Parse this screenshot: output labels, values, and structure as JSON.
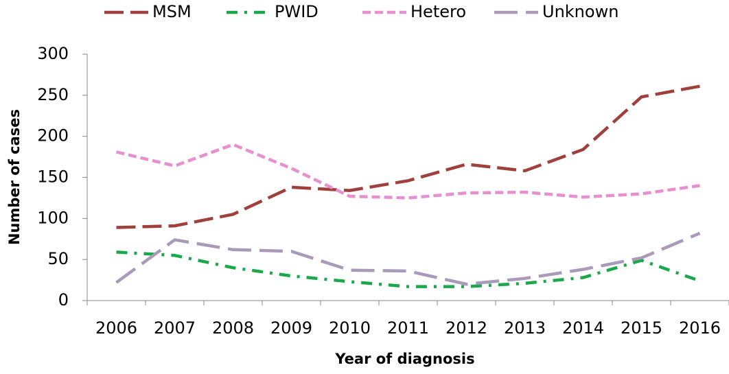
{
  "chart_data": {
    "type": "line",
    "x_label": "Year of diagnosis",
    "y_label": "Number of cases",
    "categories": [
      "2006",
      "2007",
      "2008",
      "2009",
      "2010",
      "2011",
      "2012",
      "2013",
      "2014",
      "2015",
      "2016"
    ],
    "series": [
      {
        "name": "MSM",
        "color": "#a0403c",
        "values": [
          89,
          91,
          105,
          138,
          134,
          146,
          166,
          158,
          184,
          248,
          261
        ]
      },
      {
        "name": "PWID",
        "color": "#1aa84a",
        "values": [
          59,
          55,
          40,
          30,
          23,
          17,
          17,
          21,
          28,
          49,
          24
        ]
      },
      {
        "name": "Hetero",
        "color": "#e88fd0",
        "values": [
          181,
          164,
          190,
          161,
          127,
          125,
          131,
          132,
          126,
          130,
          140
        ]
      },
      {
        "name": "Unknown",
        "color": "#a89ab8",
        "values": [
          22,
          74,
          62,
          60,
          37,
          36,
          20,
          27,
          38,
          52,
          82
        ]
      }
    ],
    "ylim": [
      0,
      300
    ],
    "yticks": [
      0,
      50,
      100,
      150,
      200,
      250,
      300
    ],
    "legend": "top"
  }
}
